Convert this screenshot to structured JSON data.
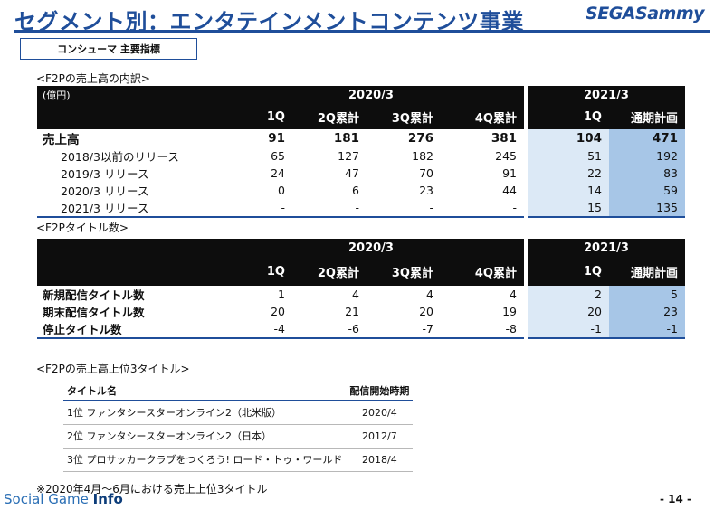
{
  "page": {
    "title": "セグメント別：エンタテインメントコンテンツ事業",
    "logo": "SEGASammy",
    "section": "コンシューマ 主要指標",
    "page_number": "- 14 -",
    "footnote": "※2020年4月～6月における売上上位3タイトル",
    "watermark_a": "Social Game ",
    "watermark_b": "Info"
  },
  "sales": {
    "heading": "<F2Pの売上高の内訳>",
    "unit": "(億円)",
    "year_a": "2020/3",
    "year_b": "2021/3",
    "cols": [
      "1Q",
      "2Q累計",
      "3Q累計",
      "4Q累計",
      "1Q",
      "通期計画"
    ],
    "rows": [
      {
        "label": "売上高",
        "values": [
          "91",
          "181",
          "276",
          "381",
          "104",
          "471"
        ]
      },
      {
        "label": "2018/3以前のリリース",
        "values": [
          "65",
          "127",
          "182",
          "245",
          "51",
          "192"
        ]
      },
      {
        "label": "2019/3 リリース",
        "values": [
          "24",
          "47",
          "70",
          "91",
          "22",
          "83"
        ]
      },
      {
        "label": "2020/3 リリース",
        "values": [
          "0",
          "6",
          "23",
          "44",
          "14",
          "59"
        ]
      },
      {
        "label": "2021/3 リリース",
        "values": [
          "-",
          "-",
          "-",
          "-",
          "15",
          "135"
        ]
      }
    ]
  },
  "titles": {
    "heading": "<F2Pタイトル数>",
    "year_a": "2020/3",
    "year_b": "2021/3",
    "cols": [
      "1Q",
      "2Q累計",
      "3Q累計",
      "4Q累計",
      "1Q",
      "通期計画"
    ],
    "rows": [
      {
        "label": "新規配信タイトル数",
        "values": [
          "1",
          "4",
          "4",
          "4",
          "2",
          "5"
        ]
      },
      {
        "label": "期末配信タイトル数",
        "values": [
          "20",
          "21",
          "20",
          "19",
          "20",
          "23"
        ]
      },
      {
        "label": "停止タイトル数",
        "values": [
          "-4",
          "-6",
          "-7",
          "-8",
          "-1",
          "-1"
        ]
      }
    ]
  },
  "top3": {
    "heading": "<F2Pの売上高上位3タイトル>",
    "col_title": "タイトル名",
    "col_date": "配信開始時期",
    "rows": [
      {
        "title": "1位 ファンタシースターオンライン2（北米版）",
        "date": "2020/4"
      },
      {
        "title": "2位 ファンタシースターオンライン2（日本）",
        "date": "2012/7"
      },
      {
        "title": "3位 プロサッカークラブをつくろう! ロード・トゥ・ワールド",
        "date": "2018/4"
      }
    ]
  }
}
